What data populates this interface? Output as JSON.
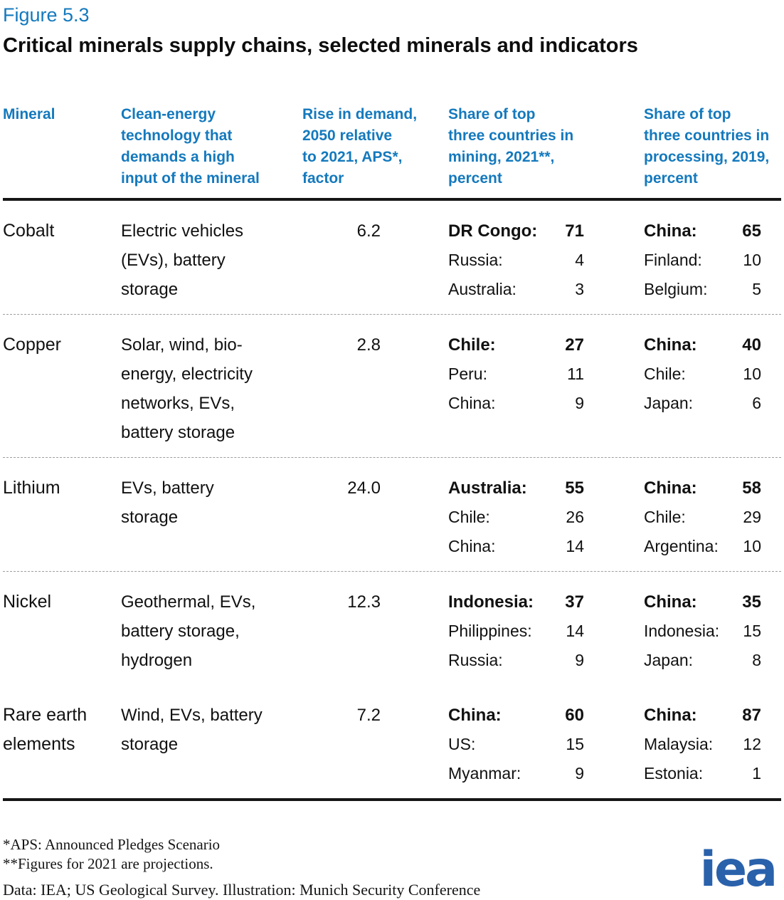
{
  "figure_label": "Figure 5.3",
  "chart_data": {
    "type": "table",
    "title": "Critical minerals supply chains, selected minerals and indicators",
    "columns": [
      "Mineral",
      "Clean-energy\ntechnology that\ndemands a high\ninput of the mineral",
      "Rise in demand,\n2050 relative\nto 2021, APS*,\nfactor",
      "Share of top\nthree countries in\nmining, 2021**,\npercent",
      "Share of top\nthree countries in\nprocessing, 2019,\npercent"
    ],
    "rows": [
      {
        "mineral": "Cobalt",
        "technology": "Electric vehicles\n(EVs), battery\nstorage",
        "demand_factor": "6.2",
        "mining": [
          {
            "label": "DR Congo:",
            "value": 71
          },
          {
            "label": "Russia:",
            "value": 4
          },
          {
            "label": "Australia:",
            "value": 3
          }
        ],
        "processing": [
          {
            "label": "China:",
            "value": 65
          },
          {
            "label": "Finland:",
            "value": 10
          },
          {
            "label": "Belgium:",
            "value": 5
          }
        ]
      },
      {
        "mineral": "Copper",
        "technology": "Solar, wind, bio-\nenergy, electricity\nnetworks, EVs,\nbattery storage",
        "demand_factor": "2.8",
        "mining": [
          {
            "label": "Chile:",
            "value": 27
          },
          {
            "label": "Peru:",
            "value": 11
          },
          {
            "label": "China:",
            "value": 9
          }
        ],
        "processing": [
          {
            "label": "China:",
            "value": 40
          },
          {
            "label": "Chile:",
            "value": 10
          },
          {
            "label": "Japan:",
            "value": 6
          }
        ]
      },
      {
        "mineral": "Lithium",
        "technology": "EVs, battery\nstorage",
        "demand_factor": "24.0",
        "mining": [
          {
            "label": "Australia:",
            "value": 55
          },
          {
            "label": "Chile:",
            "value": 26
          },
          {
            "label": "China:",
            "value": 14
          }
        ],
        "processing": [
          {
            "label": "China:",
            "value": 58
          },
          {
            "label": "Chile:",
            "value": 29
          },
          {
            "label": "Argentina:",
            "value": 10
          }
        ]
      },
      {
        "mineral": "Nickel",
        "technology": "Geothermal, EVs,\nbattery storage,\nhydrogen",
        "demand_factor": "12.3",
        "mining": [
          {
            "label": "Indonesia:",
            "value": 37
          },
          {
            "label": "Philippines:",
            "value": 14
          },
          {
            "label": "Russia:",
            "value": 9
          }
        ],
        "processing": [
          {
            "label": "China:",
            "value": 35
          },
          {
            "label": "Indonesia:",
            "value": 15
          },
          {
            "label": "Japan:",
            "value": 8
          }
        ]
      },
      {
        "mineral": "Rare earth\nelements",
        "technology": "Wind, EVs, battery\nstorage",
        "demand_factor": "7.2",
        "mining": [
          {
            "label": "China:",
            "value": 60
          },
          {
            "label": "US:",
            "value": 15
          },
          {
            "label": "Myanmar:",
            "value": 9
          }
        ],
        "processing": [
          {
            "label": "China:",
            "value": 87
          },
          {
            "label": "Malaysia:",
            "value": 12
          },
          {
            "label": "Estonia:",
            "value": 1
          }
        ]
      }
    ]
  },
  "footnotes": [
    "*APS: Announced Pledges Scenario",
    "**Figures for 2021 are projections."
  ],
  "source_line": "Data: IEA; US Geological Survey. Illustration: Munich Security Conference",
  "logo_text": "iea",
  "colors": {
    "accent_blue": "#1479bd",
    "logo_blue": "#2a61ab",
    "text": "#111111"
  }
}
